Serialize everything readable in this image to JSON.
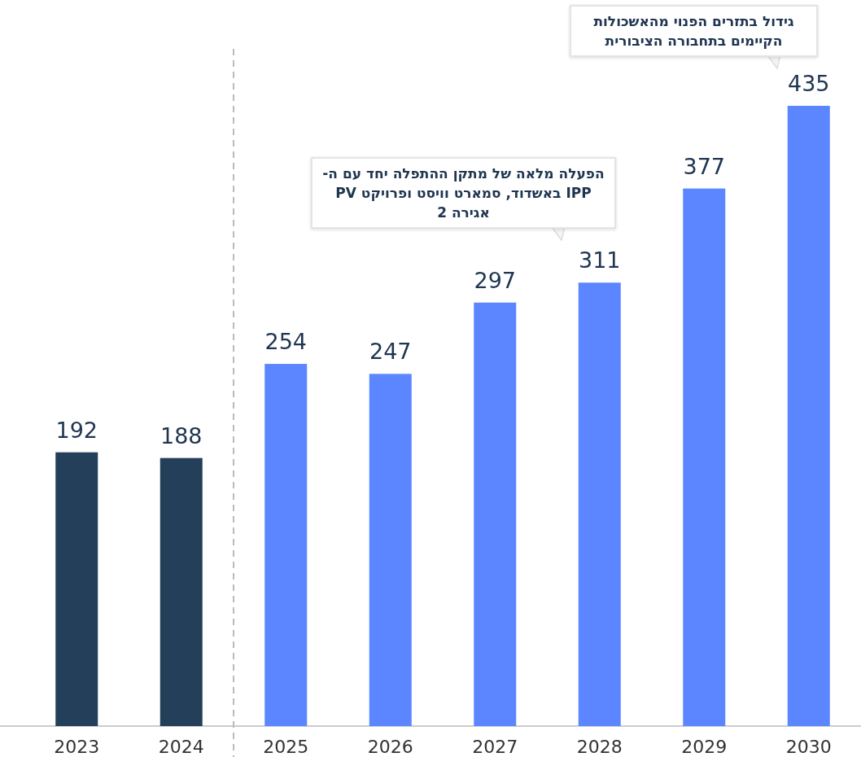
{
  "chart_data": {
    "type": "bar",
    "categories": [
      "2023",
      "2024",
      "2025",
      "2026",
      "2027",
      "2028",
      "2029",
      "2030"
    ],
    "values": [
      192,
      188,
      254,
      247,
      297,
      311,
      377,
      435
    ],
    "colors": [
      "#243f5a",
      "#243f5a",
      "#5b86ff",
      "#5b86ff",
      "#5b86ff",
      "#5b86ff",
      "#5b86ff",
      "#5b86ff"
    ],
    "data_labels": true,
    "annotations": [
      "גידול בתזרים הפנוי מהאשכולות הקיימים בתחבורה הציבורית",
      "הפעלה מלאה של מתקן ההתפלה יחד עם ה-IPP באשדוד, סמארט וויסט ופרויקט PV אגירה 2"
    ]
  }
}
